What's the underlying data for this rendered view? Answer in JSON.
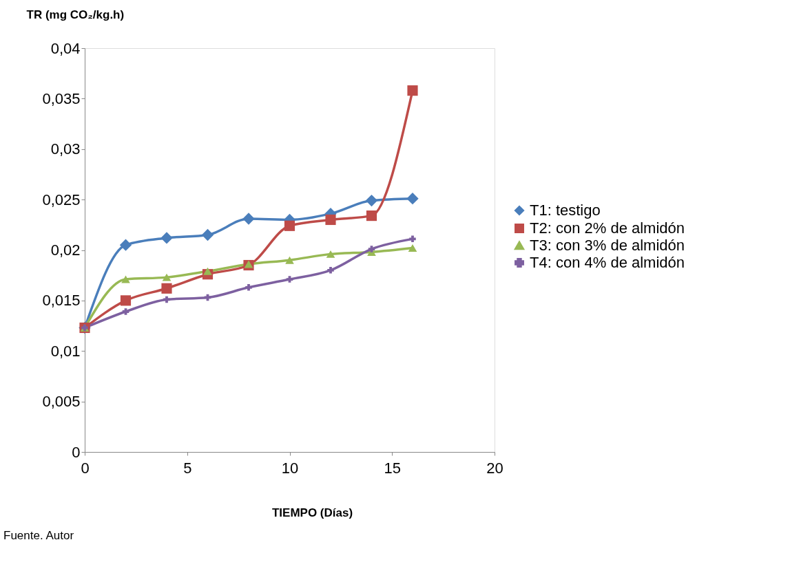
{
  "chart_data": {
    "type": "line",
    "ylabel": "TR (mg CO₂/kg.h)",
    "xlabel": "TIEMPO (Días)",
    "annotations": [
      "Fuente. Autor"
    ],
    "x": [
      0,
      2,
      4,
      6,
      8,
      10,
      12,
      14,
      16
    ],
    "series": [
      {
        "name": "T1: testigo",
        "color": "#4a7ebb",
        "marker": "diamond",
        "values": [
          0.0123,
          0.0205,
          0.0212,
          0.0215,
          0.0231,
          0.023,
          0.0236,
          0.0249,
          0.0251
        ]
      },
      {
        "name": "T2: con 2% de almidón",
        "color": "#be4b48",
        "marker": "square",
        "values": [
          0.0123,
          0.015,
          0.0162,
          0.0176,
          0.0185,
          0.0224,
          0.023,
          0.0234,
          0.0358
        ]
      },
      {
        "name": "T3: con 3% de almidón",
        "color": "#98b954",
        "marker": "triangle",
        "values": [
          0.0123,
          0.0171,
          0.0173,
          0.0179,
          0.0186,
          0.019,
          0.0196,
          0.0198,
          0.0202
        ]
      },
      {
        "name": "T4: con 4% de almidón",
        "color": "#7d60a0",
        "marker": "cross",
        "values": [
          0.0123,
          0.0139,
          0.0151,
          0.0153,
          0.0163,
          0.0171,
          0.018,
          0.0201,
          0.0211
        ]
      }
    ],
    "xlim": [
      0,
      20
    ],
    "xticks": [
      0,
      5,
      10,
      15,
      20
    ],
    "ylim": [
      0,
      0.04
    ],
    "yticks": [
      0,
      {
        "value": 0.005,
        "label": "0,005"
      },
      {
        "value": 0.01,
        "label": "0,01"
      },
      {
        "value": 0.015,
        "label": "0,015"
      },
      {
        "value": 0.02,
        "label": "0,02"
      },
      {
        "value": 0.025,
        "label": "0,025"
      },
      {
        "value": 0.03,
        "label": "0,03"
      },
      {
        "value": 0.035,
        "label": "0,035"
      },
      {
        "value": 0.04,
        "label": "0,04"
      }
    ],
    "grid": false,
    "legend": "right",
    "line_style": "solid"
  }
}
